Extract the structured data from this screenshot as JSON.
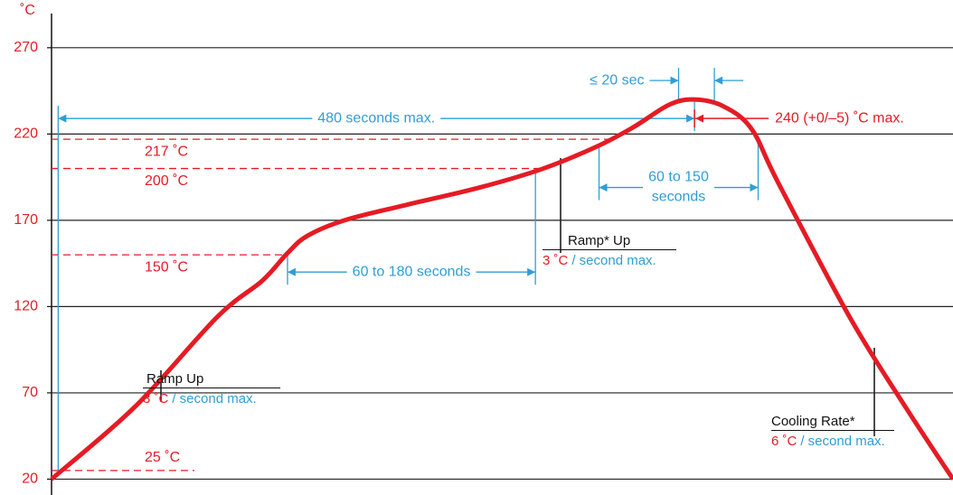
{
  "chart_data": {
    "type": "line",
    "y_label": "˚C",
    "ylim": [
      15,
      283
    ],
    "yticks": [
      20,
      70,
      120,
      170,
      220,
      270
    ],
    "xlim": [
      0,
      680
    ],
    "grid": true,
    "x": [
      0,
      63,
      125,
      159,
      178,
      193,
      221,
      268,
      323,
      371,
      412,
      439,
      466,
      485,
      507,
      528,
      548,
      602,
      644,
      680
    ],
    "series": [
      {
        "color": "#e51b24",
        "values": [
          20,
          62,
          114,
          135,
          151,
          161,
          170,
          179,
          189,
          200,
          213,
          224,
          237,
          240,
          236,
          223,
          192,
          114,
          62,
          20
        ]
      }
    ],
    "ref_color": "#e51b24",
    "ref_lines": [
      {
        "value": 217,
        "label": "217 ˚C"
      },
      {
        "value": 200,
        "label": "200 ˚C"
      },
      {
        "value": 150,
        "label": "150 ˚C"
      },
      {
        "value": 25,
        "label": "25 ˚C"
      }
    ],
    "span_color": "#2f9ed4",
    "spans": [
      {
        "text": "480 seconds max.",
        "x": [
          5,
          485
        ],
        "y": 229
      },
      {
        "text": "60 to 180 seconds",
        "x": [
          178,
          365
        ],
        "y": 140
      },
      {
        "text": [
          "60 to 150",
          "seconds"
        ],
        "x": [
          413,
          533
        ],
        "y": 189
      },
      {
        "text": "≤ 20 sec",
        "x": [
          473,
          500
        ],
        "y": 251
      }
    ],
    "peak_label": {
      "text": "240 (+0/–5) ˚C max.",
      "x": 485,
      "y": 229
    },
    "notes": [
      {
        "title": "Ramp Up",
        "rate": "3 ˚C",
        "per": "/ second max."
      },
      {
        "title": "Ramp* Up",
        "rate": "3 ˚C",
        "per": "/ second max."
      },
      {
        "title": "Cooling Rate*",
        "rate": "6 ˚C",
        "per": "/ second max."
      }
    ]
  }
}
